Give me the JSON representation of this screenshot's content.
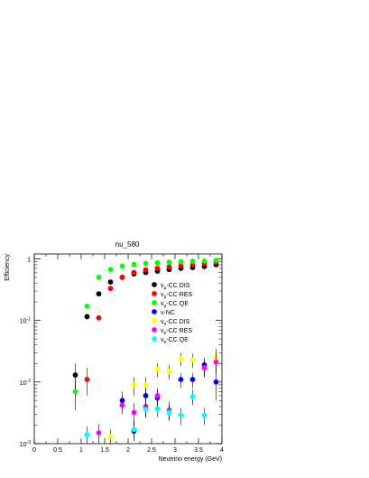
{
  "chart_data": {
    "type": "scatter",
    "title": "nu_580",
    "xlabel": "Neutrino energy (GeV)",
    "ylabel": "Efficiency",
    "xlim": [
      0,
      4
    ],
    "ylim": [
      0.001,
      1.2
    ],
    "yscale": "log",
    "grid": false,
    "legend_position": "center-right",
    "x_ticks": [
      0,
      0.5,
      1,
      1.5,
      2,
      2.5,
      3,
      3.5,
      4
    ],
    "x_tick_labels": [
      "0",
      "0.5",
      "1",
      "1.5",
      "2",
      "2.5",
      "3",
      "3.5",
      "4"
    ],
    "y_ticks": [
      0.001,
      0.01,
      0.1,
      1
    ],
    "y_tick_labels": [
      {
        "base": "10",
        "exp": "-3"
      },
      {
        "base": "10",
        "exp": "-2"
      },
      {
        "base": "10",
        "exp": "-1"
      },
      {
        "base": "1",
        "exp": ""
      }
    ],
    "series": [
      {
        "name": "νμ-CC DIS",
        "label_main": "ν",
        "label_sub": "μ",
        "label_rest": "-CC DIS",
        "color": "#000000",
        "points": [
          {
            "x": 0.875,
            "y": 0.013,
            "xerr": 0.0,
            "ylo": 0.006,
            "yhi": 0.02
          },
          {
            "x": 1.125,
            "y": 0.115,
            "xerr": 0.04,
            "ylo": 0.11,
            "yhi": 0.12
          },
          {
            "x": 1.375,
            "y": 0.27,
            "xerr": 0.04,
            "ylo": 0.265,
            "yhi": 0.28
          },
          {
            "x": 1.625,
            "y": 0.42,
            "xerr": 0.04,
            "ylo": 0.41,
            "yhi": 0.43
          },
          {
            "x": 1.875,
            "y": 0.5,
            "xerr": 0.05,
            "ylo": 0.49,
            "yhi": 0.51
          },
          {
            "x": 2.125,
            "y": 0.57,
            "xerr": 0.05,
            "ylo": 0.56,
            "yhi": 0.58
          },
          {
            "x": 2.375,
            "y": 0.6,
            "xerr": 0.05,
            "ylo": 0.59,
            "yhi": 0.61
          },
          {
            "x": 2.625,
            "y": 0.63,
            "xerr": 0.05,
            "ylo": 0.62,
            "yhi": 0.64
          },
          {
            "x": 2.875,
            "y": 0.67,
            "xerr": 0.05,
            "ylo": 0.66,
            "yhi": 0.68
          },
          {
            "x": 3.125,
            "y": 0.7,
            "xerr": 0.05,
            "ylo": 0.69,
            "yhi": 0.71
          },
          {
            "x": 3.375,
            "y": 0.72,
            "xerr": 0.05,
            "ylo": 0.71,
            "yhi": 0.73
          },
          {
            "x": 3.625,
            "y": 0.75,
            "xerr": 0.05,
            "ylo": 0.74,
            "yhi": 0.76
          },
          {
            "x": 3.875,
            "y": 0.8,
            "xerr": 0.05,
            "ylo": 0.79,
            "yhi": 0.81
          }
        ]
      },
      {
        "name": "νμ-CC RES",
        "label_main": "ν",
        "label_sub": "μ",
        "label_rest": "-CC RES",
        "color": "#ff0000",
        "points": [
          {
            "x": 1.125,
            "y": 0.011,
            "xerr": 0.0,
            "ylo": 0.006,
            "yhi": 0.017
          },
          {
            "x": 1.375,
            "y": 0.11,
            "xerr": 0.05,
            "ylo": 0.105,
            "yhi": 0.115
          },
          {
            "x": 1.625,
            "y": 0.33,
            "xerr": 0.05,
            "ylo": 0.32,
            "yhi": 0.34
          },
          {
            "x": 1.875,
            "y": 0.5,
            "xerr": 0.05,
            "ylo": 0.49,
            "yhi": 0.51
          },
          {
            "x": 2.125,
            "y": 0.6,
            "xerr": 0.05,
            "ylo": 0.59,
            "yhi": 0.61
          },
          {
            "x": 2.375,
            "y": 0.66,
            "xerr": 0.05,
            "ylo": 0.65,
            "yhi": 0.67
          },
          {
            "x": 2.625,
            "y": 0.7,
            "xerr": 0.05,
            "ylo": 0.69,
            "yhi": 0.71
          },
          {
            "x": 2.875,
            "y": 0.74,
            "xerr": 0.05,
            "ylo": 0.73,
            "yhi": 0.75
          },
          {
            "x": 3.125,
            "y": 0.77,
            "xerr": 0.05,
            "ylo": 0.76,
            "yhi": 0.78
          },
          {
            "x": 3.375,
            "y": 0.8,
            "xerr": 0.05,
            "ylo": 0.79,
            "yhi": 0.81
          },
          {
            "x": 3.625,
            "y": 0.83,
            "xerr": 0.05,
            "ylo": 0.82,
            "yhi": 0.84
          },
          {
            "x": 3.875,
            "y": 0.88,
            "xerr": 0.05,
            "ylo": 0.87,
            "yhi": 0.89
          }
        ]
      },
      {
        "name": "νμ-CC QE",
        "label_main": "ν",
        "label_sub": "μ",
        "label_rest": "-CC QE",
        "color": "#00ff00",
        "points": [
          {
            "x": 0.875,
            "y": 0.007,
            "xerr": 0.05,
            "ylo": 0.0035,
            "yhi": 0.011
          },
          {
            "x": 1.125,
            "y": 0.17,
            "xerr": 0.05,
            "ylo": 0.165,
            "yhi": 0.175
          },
          {
            "x": 1.375,
            "y": 0.5,
            "xerr": 0.05,
            "ylo": 0.49,
            "yhi": 0.51
          },
          {
            "x": 1.625,
            "y": 0.67,
            "xerr": 0.05,
            "ylo": 0.66,
            "yhi": 0.68
          },
          {
            "x": 1.875,
            "y": 0.76,
            "xerr": 0.05,
            "ylo": 0.75,
            "yhi": 0.77
          },
          {
            "x": 2.125,
            "y": 0.81,
            "xerr": 0.05,
            "ylo": 0.8,
            "yhi": 0.82
          },
          {
            "x": 2.375,
            "y": 0.84,
            "xerr": 0.05,
            "ylo": 0.83,
            "yhi": 0.85
          },
          {
            "x": 2.625,
            "y": 0.86,
            "xerr": 0.05,
            "ylo": 0.85,
            "yhi": 0.87
          },
          {
            "x": 2.875,
            "y": 0.88,
            "xerr": 0.05,
            "ylo": 0.87,
            "yhi": 0.89
          },
          {
            "x": 3.125,
            "y": 0.9,
            "xerr": 0.05,
            "ylo": 0.89,
            "yhi": 0.91
          },
          {
            "x": 3.375,
            "y": 0.91,
            "xerr": 0.05,
            "ylo": 0.9,
            "yhi": 0.92
          },
          {
            "x": 3.625,
            "y": 0.92,
            "xerr": 0.05,
            "ylo": 0.91,
            "yhi": 0.93
          },
          {
            "x": 3.875,
            "y": 0.94,
            "xerr": 0.05,
            "ylo": 0.93,
            "yhi": 0.95
          }
        ]
      },
      {
        "name": "ν-NC",
        "label_main": "ν",
        "label_sub": "",
        "label_rest": "-NC",
        "color": "#0000ff",
        "points": [
          {
            "x": 1.875,
            "y": 0.005,
            "xerr": 0.0,
            "ylo": 0.0035,
            "yhi": 0.007
          },
          {
            "x": 2.125,
            "y": 0.0016,
            "xerr": 0.0,
            "ylo": 0.0011,
            "yhi": 0.0024
          },
          {
            "x": 2.375,
            "y": 0.006,
            "xerr": 0.0,
            "ylo": 0.004,
            "yhi": 0.008
          },
          {
            "x": 2.625,
            "y": 0.0055,
            "xerr": 0.0,
            "ylo": 0.004,
            "yhi": 0.0075
          },
          {
            "x": 3.125,
            "y": 0.011,
            "xerr": 0.0,
            "ylo": 0.008,
            "yhi": 0.014
          },
          {
            "x": 3.375,
            "y": 0.011,
            "xerr": 0.0,
            "ylo": 0.008,
            "yhi": 0.014
          },
          {
            "x": 3.625,
            "y": 0.019,
            "xerr": 0.0,
            "ylo": 0.014,
            "yhi": 0.025
          },
          {
            "x": 3.875,
            "y": 0.01,
            "xerr": 0.0,
            "ylo": 0.005,
            "yhi": 0.015
          }
        ]
      },
      {
        "name": "νe-CC DIS",
        "label_main": "ν",
        "label_sub": "e",
        "label_rest": "-CC DIS",
        "color": "#ffff00",
        "points": [
          {
            "x": 1.625,
            "y": 0.0013,
            "xerr": 0.06,
            "ylo": 0.001,
            "yhi": 0.0017
          },
          {
            "x": 2.125,
            "y": 0.009,
            "xerr": 0.06,
            "ylo": 0.006,
            "yhi": 0.012
          },
          {
            "x": 2.375,
            "y": 0.009,
            "xerr": 0.06,
            "ylo": 0.006,
            "yhi": 0.012
          },
          {
            "x": 2.625,
            "y": 0.016,
            "xerr": 0.06,
            "ylo": 0.012,
            "yhi": 0.02
          },
          {
            "x": 2.875,
            "y": 0.015,
            "xerr": 0.06,
            "ylo": 0.011,
            "yhi": 0.019
          },
          {
            "x": 3.125,
            "y": 0.024,
            "xerr": 0.06,
            "ylo": 0.018,
            "yhi": 0.03
          },
          {
            "x": 3.375,
            "y": 0.023,
            "xerr": 0.06,
            "ylo": 0.017,
            "yhi": 0.029
          },
          {
            "x": 3.625,
            "y": 0.017,
            "xerr": 0.06,
            "ylo": 0.012,
            "yhi": 0.023
          },
          {
            "x": 3.875,
            "y": 0.025,
            "xerr": 0.06,
            "ylo": 0.015,
            "yhi": 0.035
          }
        ]
      },
      {
        "name": "νe-CC RES",
        "label_main": "ν",
        "label_sub": "e",
        "label_rest": "-CC RES",
        "color": "#ff00ff",
        "points": [
          {
            "x": 1.375,
            "y": 0.0015,
            "xerr": 0.0,
            "ylo": 0.001,
            "yhi": 0.0021
          },
          {
            "x": 1.875,
            "y": 0.0042,
            "xerr": 0.0,
            "ylo": 0.003,
            "yhi": 0.006
          },
          {
            "x": 2.125,
            "y": 0.0032,
            "xerr": 0.0,
            "ylo": 0.002,
            "yhi": 0.0045
          },
          {
            "x": 2.375,
            "y": 0.004,
            "xerr": 0.0,
            "ylo": 0.0028,
            "yhi": 0.0055
          },
          {
            "x": 2.625,
            "y": 0.006,
            "xerr": 0.0,
            "ylo": 0.0042,
            "yhi": 0.008
          },
          {
            "x": 2.875,
            "y": 0.0035,
            "xerr": 0.0,
            "ylo": 0.0025,
            "yhi": 0.0048
          },
          {
            "x": 3.625,
            "y": 0.017,
            "xerr": 0.0,
            "ylo": 0.012,
            "yhi": 0.023
          },
          {
            "x": 3.875,
            "y": 0.021,
            "xerr": 0.0,
            "ylo": 0.014,
            "yhi": 0.03
          }
        ]
      },
      {
        "name": "νe-CC QE",
        "label_main": "ν",
        "label_sub": "e",
        "label_rest": "-CC QE",
        "color": "#00ffff",
        "points": [
          {
            "x": 1.125,
            "y": 0.0014,
            "xerr": 0.06,
            "ylo": 0.001,
            "yhi": 0.0019
          },
          {
            "x": 2.125,
            "y": 0.0017,
            "xerr": 0.06,
            "ylo": 0.0012,
            "yhi": 0.0023
          },
          {
            "x": 2.375,
            "y": 0.0036,
            "xerr": 0.06,
            "ylo": 0.0026,
            "yhi": 0.0048
          },
          {
            "x": 2.625,
            "y": 0.0037,
            "xerr": 0.06,
            "ylo": 0.0027,
            "yhi": 0.005
          },
          {
            "x": 2.875,
            "y": 0.0032,
            "xerr": 0.06,
            "ylo": 0.0023,
            "yhi": 0.0043
          },
          {
            "x": 3.125,
            "y": 0.0029,
            "xerr": 0.06,
            "ylo": 0.002,
            "yhi": 0.0038
          },
          {
            "x": 3.375,
            "y": 0.0058,
            "xerr": 0.06,
            "ylo": 0.0042,
            "yhi": 0.0076
          },
          {
            "x": 3.625,
            "y": 0.0029,
            "xerr": 0.06,
            "ylo": 0.002,
            "yhi": 0.0038
          }
        ]
      }
    ]
  }
}
